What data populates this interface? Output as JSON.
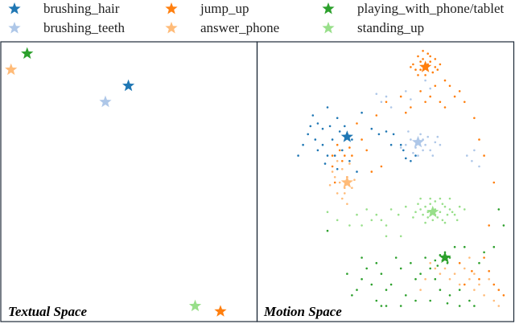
{
  "chart_data": [
    {
      "type": "scatter",
      "panel_label": "Textual Space",
      "xlim": [
        0,
        100
      ],
      "ylim": [
        0,
        100
      ],
      "series": [
        {
          "name": "brushing_hair",
          "color": "#1f77b4",
          "marker": "star",
          "points": [
            [
              53,
              86
            ]
          ]
        },
        {
          "name": "jump_up",
          "color": "#ff7f0e",
          "marker": "star",
          "points": [
            [
              93,
              2
            ]
          ]
        },
        {
          "name": "playing_with_phone/tablet",
          "color": "#2ca02c",
          "marker": "star",
          "points": [
            [
              9,
              98
            ]
          ]
        },
        {
          "name": "brushing_teeth",
          "color": "#aec7e8",
          "marker": "star",
          "points": [
            [
              43,
              80
            ]
          ]
        },
        {
          "name": "answer_phone",
          "color": "#ffbb78",
          "marker": "star",
          "points": [
            [
              2,
              92
            ]
          ]
        },
        {
          "name": "standing_up",
          "color": "#98df8a",
          "marker": "star",
          "points": [
            [
              82,
              4
            ]
          ]
        }
      ]
    },
    {
      "type": "scatter",
      "panel_label": "Motion Space",
      "xlim": [
        0,
        100
      ],
      "ylim": [
        0,
        100
      ],
      "series": [
        {
          "name": "brushing_hair",
          "color": "#1f77b4",
          "centroid": [
            34,
            67
          ],
          "points": [
            [
              20,
              75
            ],
            [
              22,
              72
            ],
            [
              24,
              70
            ],
            [
              18,
              68
            ],
            [
              30,
              74
            ],
            [
              26,
              78
            ],
            [
              28,
              66
            ],
            [
              32,
              62
            ],
            [
              22,
              62
            ],
            [
              25,
              57
            ],
            [
              35,
              58
            ],
            [
              16,
              64
            ],
            [
              19,
              71
            ],
            [
              27,
              71
            ],
            [
              31,
              69
            ],
            [
              24,
              64
            ],
            [
              21,
              66
            ],
            [
              29,
              60
            ],
            [
              36,
              66
            ],
            [
              44,
              70
            ],
            [
              50,
              69
            ],
            [
              53,
              68
            ],
            [
              52,
              64
            ],
            [
              47,
              68
            ],
            [
              58,
              59
            ],
            [
              60,
              58
            ],
            [
              57,
              62
            ],
            [
              62,
              60
            ],
            [
              56,
              64
            ],
            [
              40,
              76
            ],
            [
              14,
              60
            ],
            [
              30,
              55
            ],
            [
              38,
              54
            ],
            [
              26,
              60
            ],
            [
              33,
              71
            ]
          ]
        },
        {
          "name": "jump_up",
          "color": "#ff7f0e",
          "centroid": [
            66,
            93
          ],
          "points": [
            [
              63,
              97
            ],
            [
              64,
              95
            ],
            [
              65,
              96
            ],
            [
              67,
              94
            ],
            [
              68,
              95
            ],
            [
              70,
              93
            ],
            [
              62,
              92
            ],
            [
              64,
              92
            ],
            [
              66,
              90
            ],
            [
              69,
              91
            ],
            [
              71,
              92
            ],
            [
              72,
              94
            ],
            [
              65,
              99
            ],
            [
              67,
              98
            ],
            [
              61,
              94
            ],
            [
              68,
              97
            ],
            [
              70,
              96
            ],
            [
              63,
              90
            ],
            [
              60,
              93
            ],
            [
              74,
              88
            ],
            [
              76,
              86
            ],
            [
              78,
              82
            ],
            [
              72,
              80
            ],
            [
              68,
              82
            ],
            [
              74,
              78
            ],
            [
              80,
              84
            ],
            [
              82,
              80
            ],
            [
              64,
              84
            ],
            [
              66,
              80
            ],
            [
              70,
              86
            ],
            [
              46,
              75
            ],
            [
              50,
              80
            ],
            [
              56,
              82
            ],
            [
              58,
              76
            ],
            [
              60,
              78
            ],
            [
              38,
              72
            ],
            [
              40,
              66
            ],
            [
              42,
              62
            ],
            [
              44,
              54
            ],
            [
              36,
              60
            ],
            [
              30,
              64
            ],
            [
              32,
              58
            ],
            [
              28,
              56
            ],
            [
              29,
              50
            ],
            [
              34,
              52
            ],
            [
              86,
              74
            ],
            [
              88,
              66
            ],
            [
              90,
              60
            ],
            [
              94,
              50
            ],
            [
              92,
              34
            ],
            [
              80,
              20
            ],
            [
              88,
              14
            ],
            [
              94,
              12
            ],
            [
              85,
              17
            ],
            [
              92,
              17
            ],
            [
              96,
              10
            ],
            [
              98,
              8
            ],
            [
              90,
              22
            ],
            [
              82,
              12
            ],
            [
              28,
              60
            ],
            [
              31,
              62
            ],
            [
              33,
              60
            ],
            [
              35,
              63
            ],
            [
              48,
              56
            ]
          ]
        },
        {
          "name": "playing_with_phone/tablet",
          "color": "#2ca02c",
          "centroid": [
            74,
            22
          ],
          "points": [
            [
              73,
              21
            ],
            [
              75,
              20
            ],
            [
              72,
              23
            ],
            [
              76,
              22
            ],
            [
              71,
              19
            ],
            [
              74,
              24
            ],
            [
              70,
              21
            ],
            [
              68,
              18
            ],
            [
              66,
              22
            ],
            [
              64,
              16
            ],
            [
              62,
              14
            ],
            [
              60,
              20
            ],
            [
              56,
              18
            ],
            [
              52,
              12
            ],
            [
              50,
              10
            ],
            [
              48,
              16
            ],
            [
              46,
              20
            ],
            [
              42,
              18
            ],
            [
              40,
              14
            ],
            [
              38,
              10
            ],
            [
              36,
              8
            ],
            [
              46,
              6
            ],
            [
              50,
              4
            ],
            [
              58,
              8
            ],
            [
              62,
              6
            ],
            [
              68,
              6
            ],
            [
              76,
              8
            ],
            [
              80,
              10
            ],
            [
              84,
              6
            ],
            [
              86,
              4
            ],
            [
              88,
              20
            ],
            [
              90,
              24
            ],
            [
              94,
              26
            ],
            [
              96,
              40
            ],
            [
              98,
              34
            ],
            [
              44,
              12
            ],
            [
              54,
              22
            ],
            [
              70,
              14
            ],
            [
              72,
              10
            ],
            [
              78,
              26
            ],
            [
              82,
              26
            ],
            [
              34,
              16
            ],
            [
              40,
              22
            ],
            [
              56,
              4
            ],
            [
              75,
              5
            ],
            [
              80,
              4
            ],
            [
              48,
              4
            ],
            [
              26,
              32
            ]
          ]
        },
        {
          "name": "brushing_teeth",
          "color": "#aec7e8",
          "centroid": [
            63,
            65
          ],
          "points": [
            [
              60,
              66
            ],
            [
              62,
              63
            ],
            [
              64,
              68
            ],
            [
              66,
              64
            ],
            [
              68,
              62
            ],
            [
              70,
              65
            ],
            [
              61,
              61
            ],
            [
              65,
              62
            ],
            [
              58,
              64
            ],
            [
              67,
              67
            ],
            [
              72,
              64
            ],
            [
              63,
              60
            ],
            [
              69,
              60
            ],
            [
              56,
              63
            ],
            [
              71,
              67
            ],
            [
              65,
              66
            ],
            [
              59,
              69
            ],
            [
              46,
              83
            ],
            [
              48,
              80
            ],
            [
              58,
              84
            ],
            [
              60,
              81
            ],
            [
              52,
              78
            ],
            [
              50,
              82
            ],
            [
              66,
              88
            ],
            [
              68,
              85
            ],
            [
              85,
              58
            ],
            [
              88,
              56
            ],
            [
              86,
              62
            ],
            [
              83,
              60
            ]
          ]
        },
        {
          "name": "answer_phone",
          "color": "#ffbb78",
          "centroid": [
            34,
            50
          ],
          "points": [
            [
              30,
              58
            ],
            [
              32,
              55
            ],
            [
              34,
              52
            ],
            [
              29,
              52
            ],
            [
              36,
              48
            ],
            [
              33,
              46
            ],
            [
              31,
              50
            ],
            [
              35,
              57
            ],
            [
              28,
              54
            ],
            [
              33,
              48
            ],
            [
              30,
              46
            ],
            [
              37,
              51
            ],
            [
              32,
              44
            ],
            [
              27,
              49
            ],
            [
              34,
              42
            ],
            [
              68,
              20
            ],
            [
              70,
              18
            ],
            [
              72,
              16
            ],
            [
              74,
              18
            ],
            [
              76,
              14
            ],
            [
              78,
              16
            ],
            [
              80,
              12
            ],
            [
              82,
              18
            ],
            [
              84,
              14
            ],
            [
              86,
              10
            ],
            [
              88,
              12
            ],
            [
              90,
              8
            ],
            [
              92,
              14
            ],
            [
              94,
              6
            ],
            [
              96,
              4
            ],
            [
              66,
              14
            ],
            [
              64,
              10
            ],
            [
              84,
              22
            ],
            [
              86,
              16
            ]
          ]
        },
        {
          "name": "standing_up",
          "color": "#98df8a",
          "centroid": [
            69,
            39
          ],
          "points": [
            [
              64,
              40
            ],
            [
              66,
              41
            ],
            [
              68,
              42
            ],
            [
              70,
              40
            ],
            [
              72,
              39
            ],
            [
              74,
              41
            ],
            [
              76,
              40
            ],
            [
              78,
              38
            ],
            [
              65,
              38
            ],
            [
              67,
              37
            ],
            [
              69,
              36
            ],
            [
              71,
              37
            ],
            [
              73,
              36
            ],
            [
              75,
              38
            ],
            [
              77,
              39
            ],
            [
              62,
              39
            ],
            [
              80,
              41
            ],
            [
              63,
              42
            ],
            [
              68,
              44
            ],
            [
              72,
              44
            ],
            [
              66,
              35
            ],
            [
              74,
              35
            ],
            [
              70,
              43
            ],
            [
              61,
              37
            ],
            [
              79,
              36
            ],
            [
              64,
              44
            ],
            [
              76,
              44
            ],
            [
              58,
              41
            ],
            [
              82,
              40
            ],
            [
              70,
              38
            ],
            [
              67,
              39
            ],
            [
              73,
              42
            ],
            [
              48,
              36
            ],
            [
              52,
              40
            ],
            [
              55,
              38
            ],
            [
              44,
              36
            ],
            [
              46,
              38
            ],
            [
              42,
              40
            ],
            [
              50,
              34
            ],
            [
              26,
              39
            ],
            [
              30,
              36
            ],
            [
              35,
              34
            ],
            [
              50,
              30
            ],
            [
              56,
              30
            ],
            [
              38,
              38
            ],
            [
              40,
              34
            ]
          ]
        }
      ]
    }
  ]
}
